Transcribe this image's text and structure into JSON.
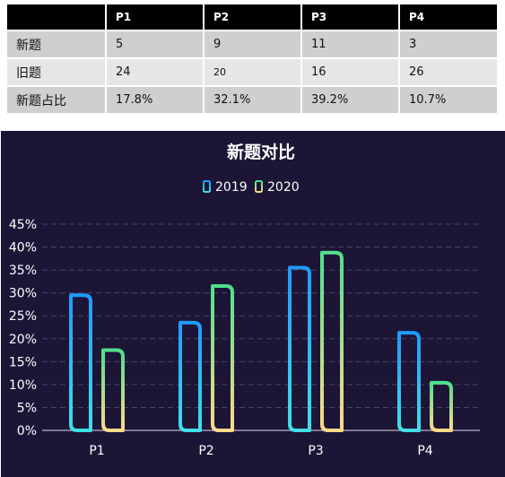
{
  "table": {
    "headers": [
      "",
      "P1",
      "P2",
      "P3",
      "P4"
    ],
    "rows": [
      {
        "label": "新题",
        "cells": [
          "5",
          "9",
          "11",
          "3"
        ]
      },
      {
        "label": "旧题",
        "cells": [
          "24",
          "20",
          "16",
          "26"
        ]
      },
      {
        "label": "新题占比",
        "cells": [
          "17.8%",
          "32.1%",
          "39.2%",
          "10.7%"
        ]
      }
    ]
  },
  "chart_data": {
    "type": "bar",
    "title": "新题对比",
    "categories": [
      "P1",
      "P2",
      "P3",
      "P4"
    ],
    "series": [
      {
        "name": "2019",
        "values": [
          29.5,
          23.5,
          35.5,
          21.3
        ]
      },
      {
        "name": "2020",
        "values": [
          17.5,
          31.5,
          38.8,
          10.4
        ]
      }
    ],
    "ylim": [
      0,
      45
    ],
    "yticks": [
      "0%",
      "5%",
      "10%",
      "15%",
      "20%",
      "25%",
      "30%",
      "35%",
      "40%",
      "45%"
    ],
    "legend_position": "top-center",
    "grid": true,
    "colors": {
      "background": "#1c1536",
      "series_2019": [
        "#1e9bff",
        "#3fe0e8"
      ],
      "series_2020": [
        "#4fe08c",
        "#ffd98a"
      ],
      "text": "#ffffff",
      "grid": "#4a4466"
    }
  }
}
